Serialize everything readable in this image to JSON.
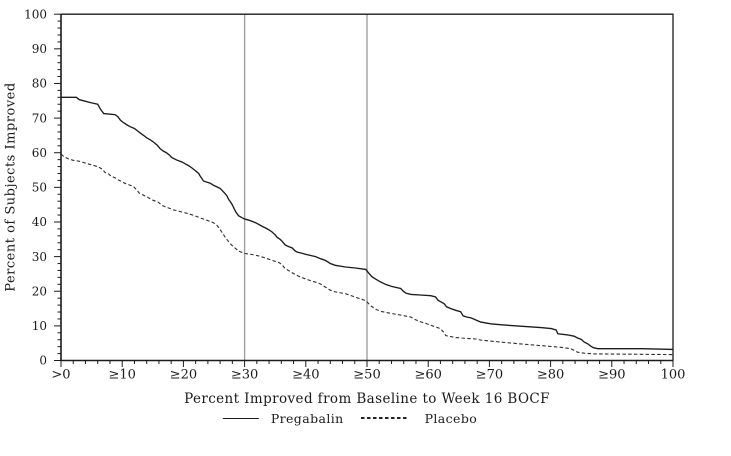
{
  "figure": {
    "background": "#ffffff",
    "axis_color": "#1b1b1b",
    "text_color": "#1b1b1b"
  },
  "chart_data": {
    "type": "line",
    "title": "",
    "xlabel": "Percent Improved from Baseline to Week 16 BOCF",
    "ylabel": "Percent of Subjects Improved",
    "xlim": [
      0,
      100
    ],
    "ylim": [
      0,
      100
    ],
    "grid": false,
    "legend_position": "bottom",
    "x_ticks": [
      0,
      10,
      20,
      30,
      40,
      50,
      60,
      70,
      80,
      90,
      100
    ],
    "x_tick_labels": [
      ">0",
      "≥10",
      "≥20",
      "≥30",
      "≥40",
      "≥50",
      "≥60",
      "≥70",
      "≥80",
      "≥90",
      "100"
    ],
    "y_ticks": [
      0,
      10,
      20,
      30,
      40,
      50,
      60,
      70,
      80,
      90,
      100
    ],
    "minor_tick_step": 2,
    "reference_lines_x": [
      30,
      50
    ],
    "reference_line_color": "#a0a0a0",
    "series": [
      {
        "name": "Pregabalin",
        "style": "solid",
        "color": "#1c1c1c",
        "points": [
          [
            0,
            76
          ],
          [
            2.5,
            76
          ],
          [
            3,
            75.3
          ],
          [
            5,
            74.4
          ],
          [
            6,
            74
          ],
          [
            6.3,
            73
          ],
          [
            6.6,
            72.2
          ],
          [
            7,
            71.3
          ],
          [
            8.8,
            71
          ],
          [
            9.3,
            70.4
          ],
          [
            9.7,
            69.4
          ],
          [
            10.2,
            68.7
          ],
          [
            10.8,
            68
          ],
          [
            11.3,
            67.5
          ],
          [
            12,
            67
          ],
          [
            12.5,
            66.3
          ],
          [
            13,
            65.6
          ],
          [
            13.5,
            65
          ],
          [
            14,
            64.3
          ],
          [
            14.6,
            63.7
          ],
          [
            15.1,
            63.1
          ],
          [
            15.7,
            62.2
          ],
          [
            16.2,
            61.2
          ],
          [
            16.7,
            60.5
          ],
          [
            17.3,
            59.9
          ],
          [
            17.8,
            59.2
          ],
          [
            18.1,
            58.6
          ],
          [
            19,
            57.8
          ],
          [
            19.8,
            57.3
          ],
          [
            20.3,
            56.8
          ],
          [
            20.8,
            56.3
          ],
          [
            21.4,
            55.6
          ],
          [
            21.9,
            54.9
          ],
          [
            22.5,
            54
          ],
          [
            22.7,
            53.4
          ],
          [
            23.3,
            51.8
          ],
          [
            24.4,
            51.2
          ],
          [
            24.9,
            50.6
          ],
          [
            25.5,
            50.1
          ],
          [
            26,
            49.7
          ],
          [
            26.6,
            48.6
          ],
          [
            27.1,
            47.6
          ],
          [
            27.4,
            46.5
          ],
          [
            27.7,
            45.8
          ],
          [
            28,
            44.9
          ],
          [
            28.3,
            43.8
          ],
          [
            28.6,
            42.8
          ],
          [
            29,
            41.8
          ],
          [
            29.6,
            41.2
          ],
          [
            30.1,
            40.8
          ],
          [
            30.7,
            40.5
          ],
          [
            31.2,
            40.2
          ],
          [
            31.8,
            39.8
          ],
          [
            32.3,
            39.3
          ],
          [
            32.8,
            38.8
          ],
          [
            33.4,
            38.3
          ],
          [
            33.9,
            37.8
          ],
          [
            34.5,
            37.1
          ],
          [
            35,
            36.3
          ],
          [
            35.3,
            35.6
          ],
          [
            35.8,
            35
          ],
          [
            36.2,
            34.3
          ],
          [
            36.6,
            33.4
          ],
          [
            37.2,
            32.9
          ],
          [
            37.8,
            32.5
          ],
          [
            38.2,
            31.7
          ],
          [
            38.6,
            31.3
          ],
          [
            39.3,
            31
          ],
          [
            40.1,
            30.6
          ],
          [
            41.6,
            30
          ],
          [
            42.4,
            29.4
          ],
          [
            43.2,
            28.9
          ],
          [
            44,
            28
          ],
          [
            44.8,
            27.5
          ],
          [
            46.5,
            27
          ],
          [
            48.1,
            26.7
          ],
          [
            49.8,
            26.3
          ],
          [
            50.3,
            25.2
          ],
          [
            50.8,
            24.2
          ],
          [
            51.4,
            23.5
          ],
          [
            52.2,
            22.7
          ],
          [
            53,
            22
          ],
          [
            54,
            21.4
          ],
          [
            55.5,
            20.8
          ],
          [
            56,
            19.9
          ],
          [
            56.4,
            19.4
          ],
          [
            57.2,
            19.1
          ],
          [
            58.7,
            18.9
          ],
          [
            60.4,
            18.7
          ],
          [
            61.2,
            18.4
          ],
          [
            61.6,
            17.4
          ],
          [
            62,
            17
          ],
          [
            62.6,
            16.4
          ],
          [
            63,
            15.5
          ],
          [
            63.7,
            15
          ],
          [
            64.5,
            14.5
          ],
          [
            65.3,
            14.1
          ],
          [
            65.7,
            12.9
          ],
          [
            66.2,
            12.6
          ],
          [
            67,
            12.3
          ],
          [
            67.8,
            11.7
          ],
          [
            68.6,
            11.1
          ],
          [
            70.2,
            10.6
          ],
          [
            72,
            10.3
          ],
          [
            75.1,
            9.9
          ],
          [
            78.4,
            9.5
          ],
          [
            80.1,
            9.2
          ],
          [
            80.9,
            8.8
          ],
          [
            81.2,
            7.7
          ],
          [
            82.8,
            7.4
          ],
          [
            83.9,
            7
          ],
          [
            84.4,
            6.5
          ],
          [
            85,
            6.1
          ],
          [
            85.5,
            5.3
          ],
          [
            86.1,
            4.8
          ],
          [
            86.6,
            4.1
          ],
          [
            87,
            3.7
          ],
          [
            87.7,
            3.4
          ],
          [
            95,
            3.4
          ],
          [
            100,
            3.2
          ]
        ]
      },
      {
        "name": "Placebo",
        "style": "dashed",
        "color": "#2e2e2e",
        "points": [
          [
            0,
            59.6
          ],
          [
            0.4,
            59
          ],
          [
            1.1,
            58.3
          ],
          [
            2,
            57.8
          ],
          [
            2.8,
            57.6
          ],
          [
            3.6,
            57.2
          ],
          [
            4.4,
            56.8
          ],
          [
            5.2,
            56.4
          ],
          [
            6.1,
            55.9
          ],
          [
            6.9,
            55.1
          ],
          [
            7.1,
            54.4
          ],
          [
            7.7,
            54
          ],
          [
            8.2,
            53.2
          ],
          [
            8.8,
            52.8
          ],
          [
            9.3,
            52.2
          ],
          [
            9.9,
            51.7
          ],
          [
            10.4,
            51.2
          ],
          [
            11,
            50.8
          ],
          [
            11.8,
            50.3
          ],
          [
            12.4,
            49.2
          ],
          [
            12.8,
            48.3
          ],
          [
            13.3,
            47.9
          ],
          [
            14.2,
            47.1
          ],
          [
            15,
            46.3
          ],
          [
            15.9,
            45.7
          ],
          [
            16.5,
            44.8
          ],
          [
            17.3,
            44.2
          ],
          [
            18.4,
            43.5
          ],
          [
            19.5,
            43
          ],
          [
            20.6,
            42.5
          ],
          [
            21.7,
            41.9
          ],
          [
            22.7,
            41.2
          ],
          [
            23.8,
            40.5
          ],
          [
            24.9,
            39.8
          ],
          [
            25.5,
            39
          ],
          [
            26,
            37.8
          ],
          [
            26.5,
            36.5
          ],
          [
            26.9,
            35.4
          ],
          [
            27.4,
            34.3
          ],
          [
            27.9,
            33.3
          ],
          [
            28.5,
            32.4
          ],
          [
            29,
            31.6
          ],
          [
            29.6,
            31.2
          ],
          [
            30.1,
            30.9
          ],
          [
            31.2,
            30.6
          ],
          [
            32.3,
            30.2
          ],
          [
            33.4,
            29.6
          ],
          [
            34.5,
            28.9
          ],
          [
            35.6,
            28.3
          ],
          [
            36.1,
            27.7
          ],
          [
            36.6,
            26.6
          ],
          [
            37.5,
            25.6
          ],
          [
            38.3,
            24.8
          ],
          [
            39.1,
            24.1
          ],
          [
            39.9,
            23.6
          ],
          [
            40.7,
            23.1
          ],
          [
            41.6,
            22.6
          ],
          [
            42.4,
            22.1
          ],
          [
            43.2,
            21.2
          ],
          [
            44,
            20.3
          ],
          [
            44.8,
            19.8
          ],
          [
            46.5,
            19.3
          ],
          [
            47.3,
            18.8
          ],
          [
            48.1,
            18.3
          ],
          [
            48.9,
            17.8
          ],
          [
            49.8,
            17.3
          ],
          [
            50.6,
            15.8
          ],
          [
            51.4,
            14.8
          ],
          [
            52.2,
            14.2
          ],
          [
            53.9,
            13.6
          ],
          [
            55.5,
            13.1
          ],
          [
            57.1,
            12.6
          ],
          [
            57.9,
            11.8
          ],
          [
            58.7,
            11.2
          ],
          [
            59.6,
            10.7
          ],
          [
            60.4,
            10.2
          ],
          [
            61.2,
            9.7
          ],
          [
            62,
            9.2
          ],
          [
            62.5,
            8.2
          ],
          [
            62.9,
            7.2
          ],
          [
            63.7,
            6.9
          ],
          [
            64.5,
            6.6
          ],
          [
            66.1,
            6.4
          ],
          [
            67.8,
            6.2
          ],
          [
            68.6,
            5.9
          ],
          [
            70.2,
            5.6
          ],
          [
            71.9,
            5.3
          ],
          [
            75.1,
            4.8
          ],
          [
            78.4,
            4.3
          ],
          [
            81.7,
            3.8
          ],
          [
            83.3,
            3.4
          ],
          [
            83.9,
            2.9
          ],
          [
            84.4,
            2.4
          ],
          [
            85.5,
            2.1
          ],
          [
            87.2,
            1.9
          ],
          [
            95,
            1.8
          ],
          [
            100,
            1.7
          ]
        ]
      }
    ]
  },
  "legend": {
    "items": [
      {
        "label": "Pregabalin",
        "line_style": "solid"
      },
      {
        "label": "Placebo",
        "line_style": "dashed"
      }
    ]
  }
}
